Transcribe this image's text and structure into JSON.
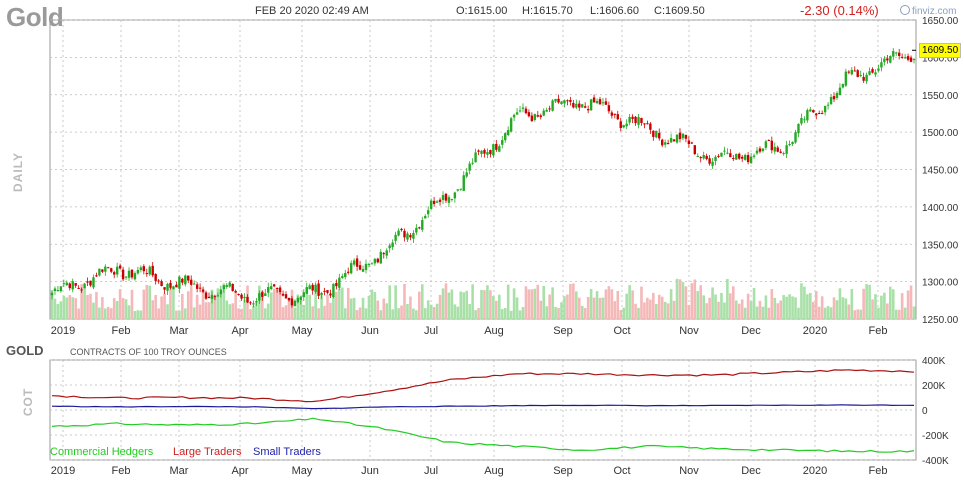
{
  "header": {
    "symbol": "Gold",
    "datetime": "FEB 20 2020 02:49 AM",
    "open": "O:1615.00",
    "high": "H:1615.70",
    "low": "L:1606.60",
    "close": "C:1609.50",
    "change": "-2.30 (0.14%)",
    "brand": "finviz.com",
    "last_price": "1609.50"
  },
  "price_panel": {
    "side_label": "DAILY"
  },
  "cot_panel": {
    "title": "GOLD",
    "subtitle": "CONTRACTS OF 100 TROY OUNCES",
    "side_label": "COT",
    "legend": [
      "Commercial Hedgers",
      "Large Traders",
      "Small Traders"
    ]
  },
  "colors": {
    "up": "#22aa22",
    "down": "#cc0000",
    "vol_up": "#a8e0a8",
    "vol_down": "#f5b8b8",
    "commercial": "#22cc22",
    "large": "#aa1111",
    "small": "#1a1a99",
    "grid": "#bbbbbb"
  },
  "chart_data": [
    {
      "type": "candlestick",
      "title": "Gold",
      "x_tick_labels": [
        "2019",
        "Feb",
        "Mar",
        "Apr",
        "May",
        "Jun",
        "Jul",
        "Aug",
        "Sep",
        "Oct",
        "Nov",
        "Dec",
        "2020",
        "Feb"
      ],
      "y_ticks": [
        "1250.00",
        "1300.00",
        "1350.00",
        "1400.00",
        "1450.00",
        "1500.00",
        "1550.00",
        "1600.00",
        "1650.00"
      ],
      "ylim": [
        1250,
        1650
      ],
      "x": [
        "2019-01",
        "2019-02",
        "2019-03",
        "2019-04",
        "2019-05",
        "2019-06",
        "2019-07",
        "2019-08",
        "2019-09",
        "2019-10",
        "2019-11",
        "2019-12",
        "2020-01",
        "2020-02"
      ],
      "close": [
        1285,
        1318,
        1295,
        1280,
        1284,
        1340,
        1420,
        1520,
        1540,
        1505,
        1465,
        1480,
        1570,
        1609.5
      ],
      "high": [
        1295,
        1348,
        1320,
        1310,
        1300,
        1405,
        1440,
        1535,
        1560,
        1525,
        1520,
        1490,
        1610,
        1615.7
      ],
      "low": [
        1275,
        1290,
        1280,
        1265,
        1268,
        1300,
        1385,
        1410,
        1490,
        1470,
        1445,
        1455,
        1520,
        1550
      ],
      "grid": true,
      "volume_overlay": true
    },
    {
      "type": "line",
      "title": "GOLD",
      "x_tick_labels": [
        "2019",
        "Feb",
        "Mar",
        "Apr",
        "May",
        "Jun",
        "Jul",
        "Aug",
        "Sep",
        "Oct",
        "Nov",
        "Dec",
        "2020",
        "Feb"
      ],
      "y_ticks": [
        "400K",
        "200K",
        "0",
        "-200K",
        "-400K"
      ],
      "ylim": [
        -400000,
        400000
      ],
      "x": [
        "2019-01",
        "2019-02",
        "2019-03",
        "2019-04",
        "2019-05",
        "2019-06",
        "2019-07",
        "2019-08",
        "2019-09",
        "2019-10",
        "2019-11",
        "2019-12",
        "2020-01",
        "2020-02"
      ],
      "series": [
        {
          "name": "Commercial Hedgers",
          "values": [
            -130000,
            -110000,
            -120000,
            -110000,
            -70000,
            -150000,
            -260000,
            -290000,
            -320000,
            -290000,
            -310000,
            -320000,
            -330000,
            -330000
          ]
        },
        {
          "name": "Large Traders",
          "values": [
            115000,
            95000,
            100000,
            95000,
            70000,
            150000,
            240000,
            290000,
            290000,
            280000,
            280000,
            300000,
            320000,
            310000
          ]
        },
        {
          "name": "Small Traders",
          "values": [
            30000,
            25000,
            28000,
            25000,
            10000,
            25000,
            30000,
            35000,
            38000,
            35000,
            35000,
            38000,
            40000,
            38000
          ]
        }
      ],
      "grid": true,
      "legend": "bottom-left"
    }
  ]
}
